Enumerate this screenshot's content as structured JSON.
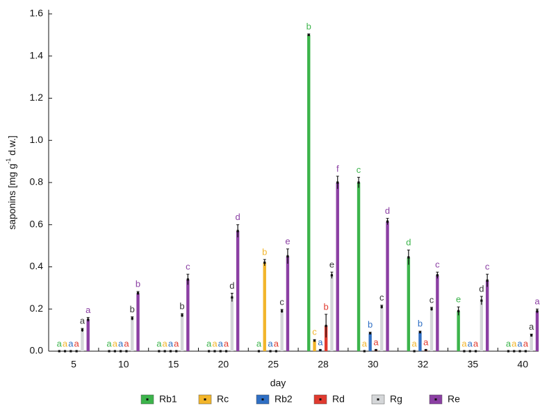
{
  "chart_data": {
    "type": "bar",
    "x_label": "day",
    "y_label": {
      "text": "saponins [mg g",
      "sup": "-1",
      "tail": " d.w.]"
    },
    "categories": [
      "5",
      "10",
      "15",
      "20",
      "25",
      "28",
      "30",
      "32",
      "35",
      "40"
    ],
    "ylim": [
      0,
      1.6
    ],
    "yticks": [
      {
        "value": 0,
        "label": "0.0"
      },
      0.2,
      0.4,
      0.6,
      0.8,
      {
        "value": 1,
        "label": "1.0"
      },
      1.2,
      1.4,
      1.6
    ],
    "legend": "bottom",
    "series": [
      {
        "name": "Rb1",
        "color": "#3cb44b",
        "letter_color": "#3cb44b",
        "values": [
          0,
          0,
          0,
          0,
          0,
          1.5,
          0.8,
          0.445,
          0.19,
          0
        ],
        "errors": [
          0,
          0,
          0,
          0,
          0,
          0.005,
          0.025,
          0.035,
          0.02,
          0
        ],
        "letters": [
          "a",
          "a",
          "a",
          "a",
          "a",
          "b",
          "c",
          "d",
          "e",
          "a"
        ]
      },
      {
        "name": "Rc",
        "color": "#f2b52b",
        "letter_color": "#f2b52b",
        "values": [
          0,
          0,
          0,
          0,
          0.42,
          0.05,
          0,
          0,
          0,
          0
        ],
        "errors": [
          0,
          0,
          0,
          0,
          0.015,
          0.005,
          0,
          0,
          0,
          0
        ],
        "letters": [
          "a",
          "a",
          "a",
          "a",
          "b",
          "c",
          "a",
          "a",
          "a",
          "a"
        ]
      },
      {
        "name": "Rb2",
        "color": "#2f6fc4",
        "letter_color": "#2f6fc4",
        "values": [
          0,
          0,
          0,
          0,
          0,
          0.005,
          0.085,
          0.09,
          0,
          0
        ],
        "errors": [
          0,
          0,
          0,
          0,
          0,
          0.002,
          0.005,
          0.005,
          0,
          0
        ],
        "letters": [
          "a",
          "a",
          "a",
          "a",
          "a",
          "a",
          "b",
          "b",
          "a",
          "a"
        ]
      },
      {
        "name": "Rd",
        "color": "#e03a2f",
        "letter_color": "#e03a2f",
        "values": [
          0,
          0,
          0,
          0,
          0,
          0.12,
          0.005,
          0.005,
          0,
          0
        ],
        "errors": [
          0,
          0,
          0,
          0,
          0,
          0.055,
          0.002,
          0.002,
          0,
          0
        ],
        "letters": [
          "a",
          "a",
          "a",
          "a",
          "a",
          "b",
          "a",
          "a",
          "a",
          "a"
        ]
      },
      {
        "name": "Rg",
        "color": "#d4d6d8",
        "letter_color": "#333333",
        "values": [
          0.1,
          0.155,
          0.17,
          0.255,
          0.19,
          0.36,
          0.21,
          0.2,
          0.24,
          0.075
        ],
        "errors": [
          0.008,
          0.008,
          0.008,
          0.02,
          0.008,
          0.015,
          0.008,
          0.008,
          0.02,
          0.006
        ],
        "letters": [
          "a",
          "b",
          "b",
          "d",
          "c",
          "e",
          "c",
          "c",
          "d",
          "a"
        ]
      },
      {
        "name": "Re",
        "color": "#8b3fa3",
        "letter_color": "#8b3fa3",
        "values": [
          0.15,
          0.275,
          0.34,
          0.57,
          0.45,
          0.8,
          0.615,
          0.36,
          0.335,
          0.19
        ],
        "errors": [
          0.01,
          0.008,
          0.025,
          0.03,
          0.035,
          0.03,
          0.015,
          0.015,
          0.03,
          0.01
        ],
        "letters": [
          "a",
          "b",
          "c",
          "d",
          "e",
          "f",
          "d",
          "c",
          "c",
          "a"
        ]
      }
    ]
  }
}
